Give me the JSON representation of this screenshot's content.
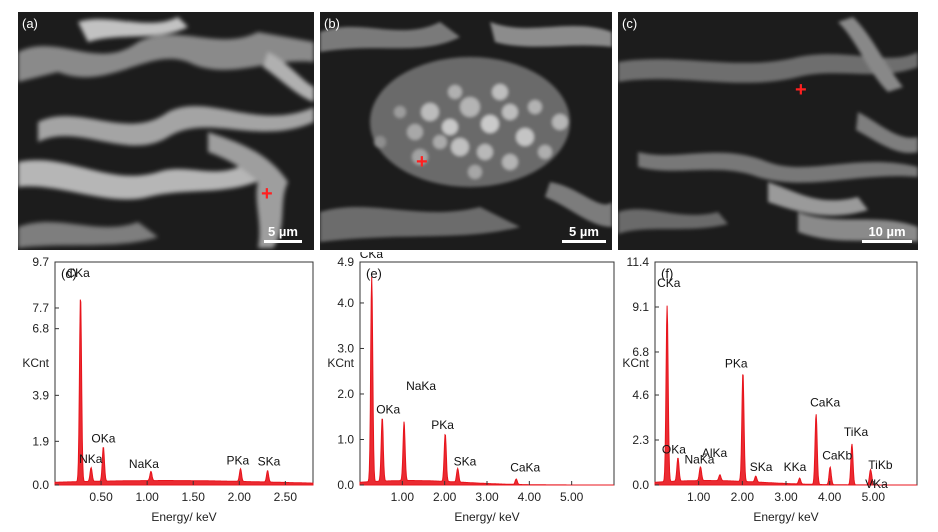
{
  "micrographs": [
    {
      "panel": "(a)",
      "scale": "5 µm"
    },
    {
      "panel": "(b)",
      "scale": "5 µm"
    },
    {
      "panel": "(c)",
      "scale": "10 µm"
    }
  ],
  "colors": {
    "spectrum": "#e8141c",
    "marker": "#ff2020",
    "axis": "#333333"
  },
  "chart_data": [
    {
      "type": "line",
      "panel": "(d)",
      "xlabel": "Energy/ keV",
      "ylabel": "KCnt",
      "xlim": [
        0,
        2.8
      ],
      "ylim": [
        0,
        9.7
      ],
      "yticks": [
        0.0,
        1.9,
        3.9,
        6.8,
        7.7,
        9.7
      ],
      "xticks": [
        0.5,
        1.0,
        1.5,
        2.0,
        2.5
      ],
      "xtick_labels": [
        "0.50",
        "1.00",
        "1.50",
        "2.00",
        "2.50"
      ],
      "peaks": [
        {
          "label": "CKa",
          "x": 0.277,
          "y": 8.1
        },
        {
          "label": "NKa",
          "x": 0.392,
          "y": 0.6
        },
        {
          "label": "OKa",
          "x": 0.525,
          "y": 1.5
        },
        {
          "label": "NaKa",
          "x": 1.041,
          "y": 0.4
        },
        {
          "label": "PKa",
          "x": 2.013,
          "y": 0.55
        },
        {
          "label": "SKa",
          "x": 2.307,
          "y": 0.5
        }
      ]
    },
    {
      "type": "line",
      "panel": "(e)",
      "xlabel": "Energy/ keV",
      "ylabel": "KCnt",
      "xlim": [
        0,
        6.0
      ],
      "ylim": [
        0,
        4.9
      ],
      "yticks": [
        0.0,
        1.0,
        2.0,
        3.0,
        4.0,
        4.9
      ],
      "xticks": [
        1.0,
        2.0,
        3.0,
        4.0,
        5.0
      ],
      "xtick_labels": [
        "1.00",
        "2.00",
        "3.00",
        "4.00",
        "5.00"
      ],
      "peaks": [
        {
          "label": "CKa",
          "x": 0.277,
          "y": 4.5
        },
        {
          "label": "OKa",
          "x": 0.525,
          "y": 1.4
        },
        {
          "label": "NaKa",
          "x": 1.041,
          "y": 1.3
        },
        {
          "label": "PKa",
          "x": 2.013,
          "y": 1.05
        },
        {
          "label": "SKa",
          "x": 2.307,
          "y": 0.3
        },
        {
          "label": "CaKa",
          "x": 3.69,
          "y": 0.12
        }
      ]
    },
    {
      "type": "line",
      "panel": "(f)",
      "xlabel": "Energy/ keV",
      "ylabel": "KCnt",
      "xlim": [
        0,
        6.0
      ],
      "ylim": [
        0,
        11.4
      ],
      "yticks": [
        0.0,
        2.3,
        4.6,
        6.8,
        9.1,
        11.4
      ],
      "xticks": [
        1.0,
        2.0,
        3.0,
        4.0,
        5.0
      ],
      "xtick_labels": [
        "1.00",
        "2.00",
        "3.00",
        "4.00",
        "5.00"
      ],
      "peaks": [
        {
          "label": "CKa",
          "x": 0.277,
          "y": 9.0
        },
        {
          "label": "OKa",
          "x": 0.525,
          "y": 1.2
        },
        {
          "label": "NaKa",
          "x": 1.041,
          "y": 0.7
        },
        {
          "label": "AlKa",
          "x": 1.486,
          "y": 0.3
        },
        {
          "label": "PKa",
          "x": 2.013,
          "y": 5.6
        },
        {
          "label": "SKa",
          "x": 2.307,
          "y": 0.3
        },
        {
          "label": "KKa",
          "x": 3.313,
          "y": 0.3
        },
        {
          "label": "CaKa",
          "x": 3.69,
          "y": 3.6
        },
        {
          "label": "CaKb",
          "x": 4.012,
          "y": 0.9
        },
        {
          "label": "TiKa",
          "x": 4.51,
          "y": 2.1
        },
        {
          "label": "TiKb",
          "x": 4.93,
          "y": 0.5
        },
        {
          "label": "VKa",
          "x": 4.95,
          "y": 0.35
        }
      ]
    }
  ]
}
